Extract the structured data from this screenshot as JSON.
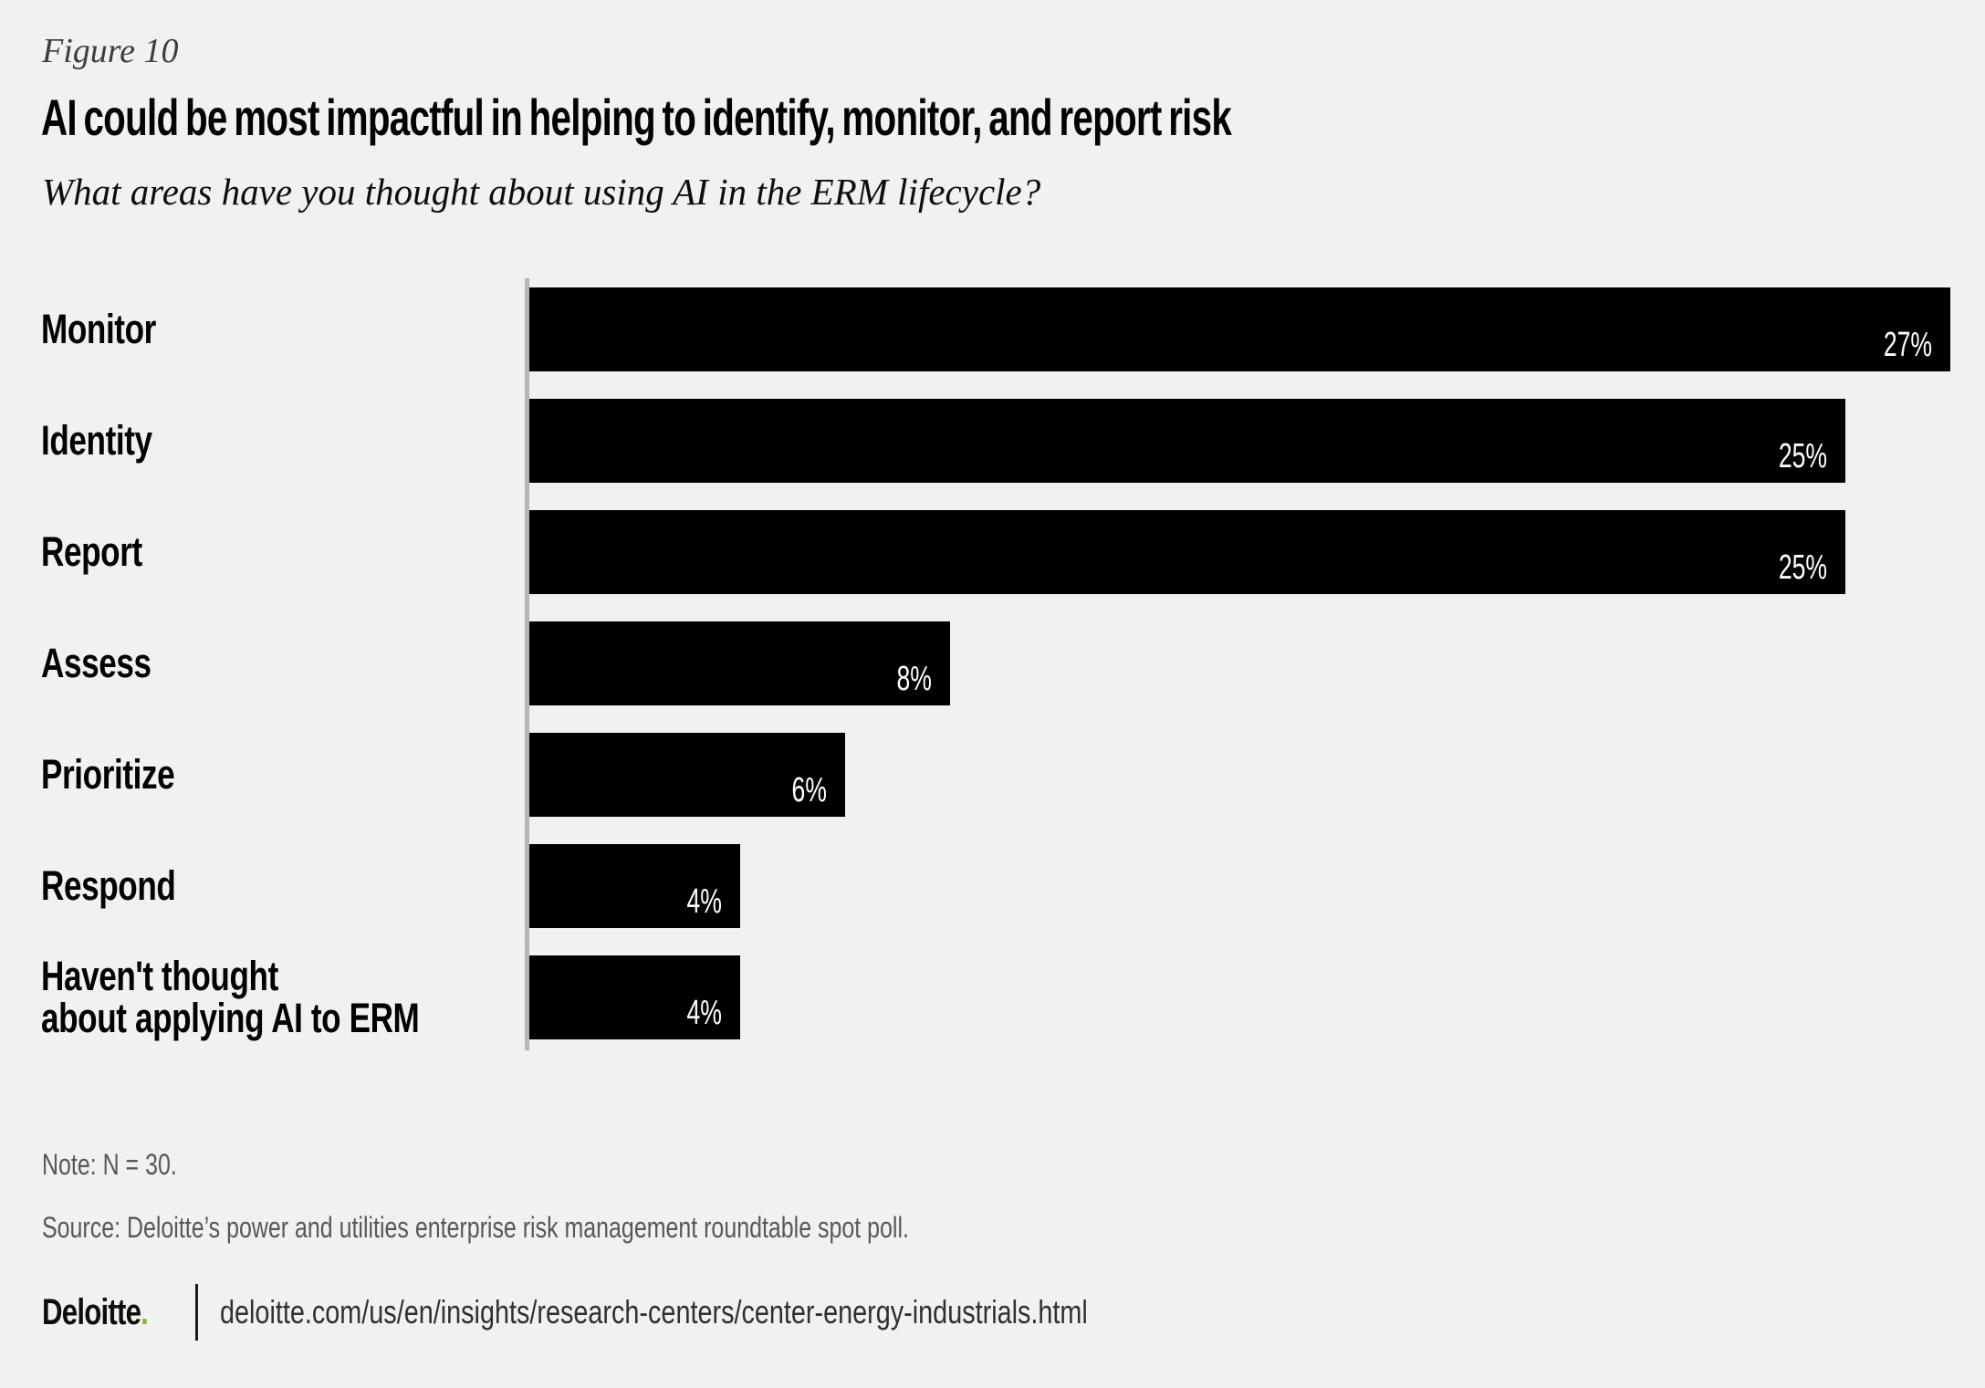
{
  "figure_label": "Figure 10",
  "title": "AI could be most impactful in helping to identify, monitor, and report risk",
  "subtitle": "What areas have you thought about using AI in the ERM lifecycle?",
  "chart_data": {
    "type": "bar",
    "orientation": "horizontal",
    "categories": [
      "Monitor",
      "Identity",
      "Report",
      "Assess",
      "Prioritize",
      "Respond",
      "Haven't thought about applying AI to ERM"
    ],
    "label_lines": [
      [
        "Monitor"
      ],
      [
        "Identity"
      ],
      [
        "Report"
      ],
      [
        "Assess"
      ],
      [
        "Prioritize"
      ],
      [
        "Respond"
      ],
      [
        "Haven't thought",
        "about applying AI to ERM"
      ]
    ],
    "values": [
      27,
      25,
      25,
      8,
      6,
      4,
      4
    ],
    "value_labels": [
      "27%",
      "25%",
      "25%",
      "8%",
      "6%",
      "4%",
      "4%"
    ],
    "xlim": [
      0,
      27
    ],
    "grid": false,
    "legend": false,
    "bar_color": "#000000",
    "value_label_color": "#ffffff",
    "axis_line_color": "#b4b7b4",
    "background_color": "#f0f2f0"
  },
  "note": "Note: N = 30.",
  "source": "Source: Deloitte’s power and utilities enterprise risk management roundtable spot poll.",
  "footer": {
    "brand": "Deloitte",
    "brand_dot": ".",
    "brand_dot_color": "#86bc25",
    "url": "deloitte.com/us/en/insights/research-centers/center-energy-industrials.html"
  }
}
